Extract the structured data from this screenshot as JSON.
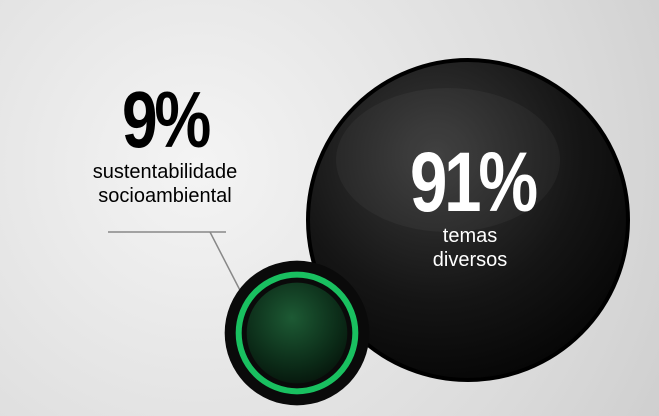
{
  "chart_data": {
    "type": "bubble",
    "categories": [
      "sustentabilidade socioambiental",
      "temas diversos"
    ],
    "values": [
      9,
      91
    ],
    "value_labels": [
      "9%",
      "91%"
    ],
    "colors": [
      "#19c060",
      "#111111"
    ]
  }
}
